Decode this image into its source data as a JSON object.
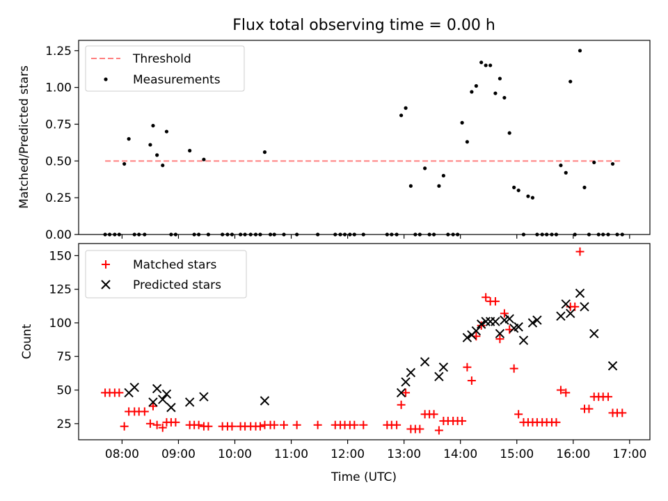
{
  "figure": {
    "title": "Flux total observing time = 0.00 h"
  },
  "chart_data": [
    {
      "type": "scatter",
      "ylabel": "Matched/Predicted stars",
      "ylim": [
        0,
        1.32
      ],
      "yticks": [
        0.0,
        0.25,
        0.5,
        0.75,
        1.0,
        1.25
      ],
      "ytick_labels": [
        "0.00",
        "0.25",
        "0.50",
        "0.75",
        "1.00",
        "1.25"
      ],
      "x_units": "hours (UTC)",
      "xlim": [
        7.23,
        17.36
      ],
      "xticks": [
        8,
        9,
        10,
        11,
        12,
        13,
        14,
        15,
        16,
        17
      ],
      "grid": false,
      "legend_position": "top-left",
      "legend": [
        {
          "label": "Threshold",
          "color": "#ff7f7f",
          "marker": "dashed-line"
        },
        {
          "label": "Measurements",
          "color": "#000000",
          "marker": "dot"
        }
      ],
      "series": [
        {
          "name": "Threshold",
          "kind": "line",
          "color": "#ff7f7f",
          "x": [
            7.7,
            16.85
          ],
          "y": [
            0.5,
            0.5
          ]
        },
        {
          "name": "Measurements",
          "kind": "points",
          "color": "#000000",
          "x": [
            7.7,
            7.78,
            7.87,
            7.95,
            8.04,
            8.12,
            8.22,
            8.3,
            8.4,
            8.5,
            8.55,
            8.62,
            8.72,
            8.79,
            8.87,
            8.95,
            9.2,
            9.28,
            9.36,
            9.45,
            9.53,
            9.78,
            9.87,
            9.95,
            10.1,
            10.18,
            10.28,
            10.37,
            10.45,
            10.53,
            10.63,
            10.7,
            10.87,
            11.1,
            11.47,
            11.78,
            11.87,
            11.95,
            12.04,
            12.12,
            12.28,
            12.7,
            12.78,
            12.87,
            12.95,
            13.03,
            13.12,
            13.2,
            13.28,
            13.37,
            13.45,
            13.53,
            13.62,
            13.7,
            13.78,
            13.87,
            13.95,
            14.03,
            14.12,
            14.2,
            14.28,
            14.37,
            14.45,
            14.53,
            14.62,
            14.7,
            14.78,
            14.87,
            14.95,
            15.03,
            15.12,
            15.2,
            15.28,
            15.36,
            15.45,
            15.53,
            15.62,
            15.7,
            15.78,
            15.87,
            15.95,
            16.03,
            16.12,
            16.2,
            16.28,
            16.37,
            16.45,
            16.53,
            16.62,
            16.7,
            16.78,
            16.87
          ],
          "y": [
            0,
            0,
            0,
            0,
            0.48,
            0.65,
            0,
            0,
            0,
            0.61,
            0.74,
            0.54,
            0.47,
            0.7,
            0,
            0,
            0.57,
            0,
            0,
            0.51,
            0,
            0,
            0,
            0,
            0,
            0,
            0,
            0,
            0,
            0.56,
            0,
            0,
            0,
            0,
            0,
            0,
            0,
            0,
            0,
            0,
            0,
            0,
            0,
            0,
            0.81,
            0.86,
            0.33,
            0,
            0,
            0.45,
            0,
            0,
            0.33,
            0.4,
            0,
            0,
            0,
            0.76,
            0.63,
            0.97,
            1.01,
            1.17,
            1.15,
            1.15,
            0.96,
            1.06,
            0.93,
            0.69,
            0.32,
            0.3,
            0,
            0.26,
            0.25,
            0,
            0,
            0,
            0,
            0,
            0.47,
            0.42,
            1.04,
            0,
            1.25,
            0.32,
            0,
            0.49,
            0,
            0,
            0,
            0.48,
            0,
            0
          ]
        }
      ]
    },
    {
      "type": "scatter",
      "ylabel": "Count",
      "xlabel": "Time (UTC)",
      "ylim": [
        13,
        159
      ],
      "yticks": [
        25,
        50,
        75,
        100,
        125,
        150
      ],
      "ytick_labels": [
        "25",
        "50",
        "75",
        "100",
        "125",
        "150"
      ],
      "x_units": "hours (UTC)",
      "xlim": [
        7.23,
        17.36
      ],
      "xticks": [
        8,
        9,
        10,
        11,
        12,
        13,
        14,
        15,
        16,
        17
      ],
      "xtick_labels": [
        "08:00",
        "09:00",
        "10:00",
        "11:00",
        "12:00",
        "13:00",
        "14:00",
        "15:00",
        "16:00",
        "17:00"
      ],
      "grid": false,
      "legend_position": "top-left",
      "legend": [
        {
          "label": "Matched stars",
          "color": "#ff0000",
          "marker": "plus"
        },
        {
          "label": "Predicted stars",
          "color": "#000000",
          "marker": "x"
        }
      ],
      "series": [
        {
          "name": "Matched stars",
          "kind": "plus",
          "color": "#ff0000",
          "x": [
            7.7,
            7.78,
            7.87,
            7.95,
            8.04,
            8.12,
            8.22,
            8.3,
            8.4,
            8.5,
            8.55,
            8.62,
            8.72,
            8.79,
            8.87,
            8.95,
            9.2,
            9.28,
            9.36,
            9.45,
            9.53,
            9.78,
            9.87,
            9.95,
            10.1,
            10.18,
            10.28,
            10.37,
            10.45,
            10.53,
            10.63,
            10.7,
            10.87,
            11.1,
            11.47,
            11.78,
            11.87,
            11.95,
            12.04,
            12.12,
            12.28,
            12.7,
            12.78,
            12.87,
            12.95,
            13.03,
            13.12,
            13.2,
            13.28,
            13.37,
            13.45,
            13.53,
            13.62,
            13.7,
            13.78,
            13.87,
            13.95,
            14.03,
            14.12,
            14.2,
            14.28,
            14.37,
            14.45,
            14.53,
            14.62,
            14.7,
            14.78,
            14.87,
            14.95,
            15.03,
            15.12,
            15.2,
            15.28,
            15.36,
            15.45,
            15.53,
            15.62,
            15.7,
            15.78,
            15.87,
            15.95,
            16.03,
            16.12,
            16.2,
            16.28,
            16.37,
            16.45,
            16.53,
            16.62,
            16.7,
            16.78,
            16.87
          ],
          "y": [
            48,
            48,
            48,
            48,
            23,
            34,
            34,
            34,
            34,
            25,
            38,
            24,
            22,
            26,
            26,
            26,
            24,
            24,
            24,
            23,
            23,
            23,
            23,
            23,
            23,
            23,
            23,
            23,
            23,
            24,
            24,
            24,
            24,
            24,
            24,
            24,
            24,
            24,
            24,
            24,
            24,
            24,
            24,
            24,
            39,
            48,
            21,
            21,
            21,
            32,
            32,
            32,
            20,
            27,
            27,
            27,
            27,
            27,
            67,
            57,
            90,
            98,
            119,
            116,
            116,
            88,
            107,
            95,
            66,
            32,
            26,
            26,
            26,
            26,
            26,
            26,
            26,
            26,
            50,
            48,
            112,
            112,
            153,
            36,
            36,
            45,
            45,
            45,
            45,
            33,
            33,
            33
          ]
        },
        {
          "name": "Predicted stars",
          "kind": "x",
          "color": "#000000",
          "x": [
            8.12,
            8.22,
            8.55,
            8.62,
            8.72,
            8.79,
            8.87,
            9.2,
            9.45,
            10.53,
            12.95,
            13.03,
            13.12,
            13.37,
            13.62,
            13.7,
            14.12,
            14.2,
            14.28,
            14.37,
            14.45,
            14.53,
            14.62,
            14.7,
            14.78,
            14.87,
            14.95,
            15.03,
            15.12,
            15.28,
            15.36,
            15.78,
            15.87,
            15.95,
            16.12,
            16.2,
            16.37,
            16.7
          ],
          "y": [
            48,
            52,
            41,
            51,
            43,
            47,
            37,
            41,
            45,
            42,
            48,
            56,
            63,
            71,
            60,
            67,
            89,
            91,
            94,
            99,
            101,
            101,
            101,
            92,
            102,
            103,
            96,
            97,
            87,
            100,
            102,
            105,
            114,
            107,
            122,
            112,
            92,
            68
          ]
        }
      ]
    }
  ]
}
